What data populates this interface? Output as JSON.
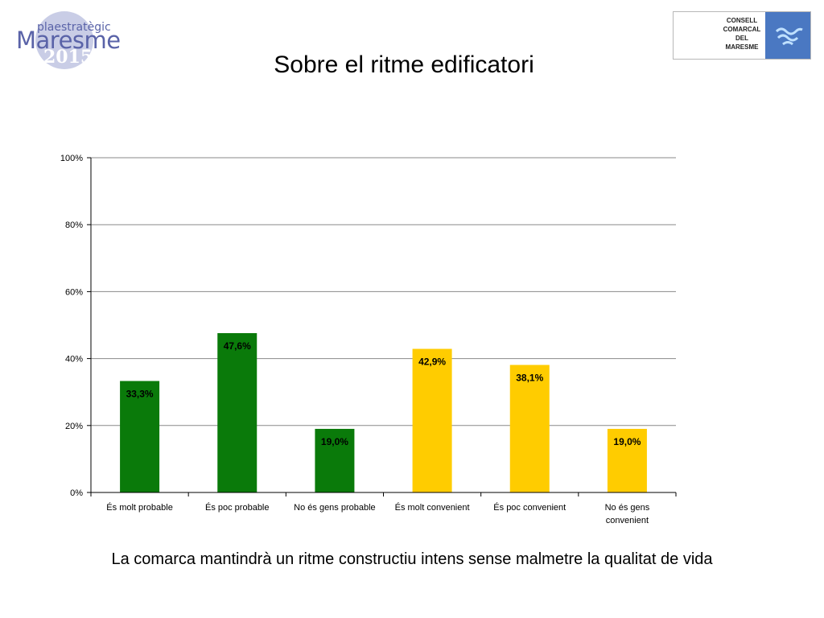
{
  "header": {
    "logo_left": {
      "line1": "plaestratègic",
      "line2": "Maresme",
      "line3": "2015"
    },
    "logo_right": {
      "lines": [
        "CONSELL",
        "COMARCAL",
        "DEL",
        "MARESME"
      ]
    },
    "title": "Sobre el ritme edificatori"
  },
  "caption": "La comarca mantindrà un ritme constructiu intens sense malmetre la qualitat de vida",
  "chart_data": {
    "type": "bar",
    "categories": [
      "És molt probable",
      "És poc probable",
      "No és gens probable",
      "És molt convenient",
      "És poc convenient",
      "No és gens convenient"
    ],
    "values": [
      33.3,
      47.6,
      19.0,
      42.9,
      38.1,
      19.0
    ],
    "value_labels": [
      "33,3%",
      "47,6%",
      "19,0%",
      "42,9%",
      "38,1%",
      "19,0%"
    ],
    "bar_colors": [
      "#0a7a0a",
      "#0a7a0a",
      "#0a7a0a",
      "#ffcc00",
      "#ffcc00",
      "#ffcc00"
    ],
    "yticks": [
      "0%",
      "20%",
      "40%",
      "60%",
      "80%",
      "100%"
    ],
    "ylim": [
      0,
      100
    ],
    "grid": true
  }
}
